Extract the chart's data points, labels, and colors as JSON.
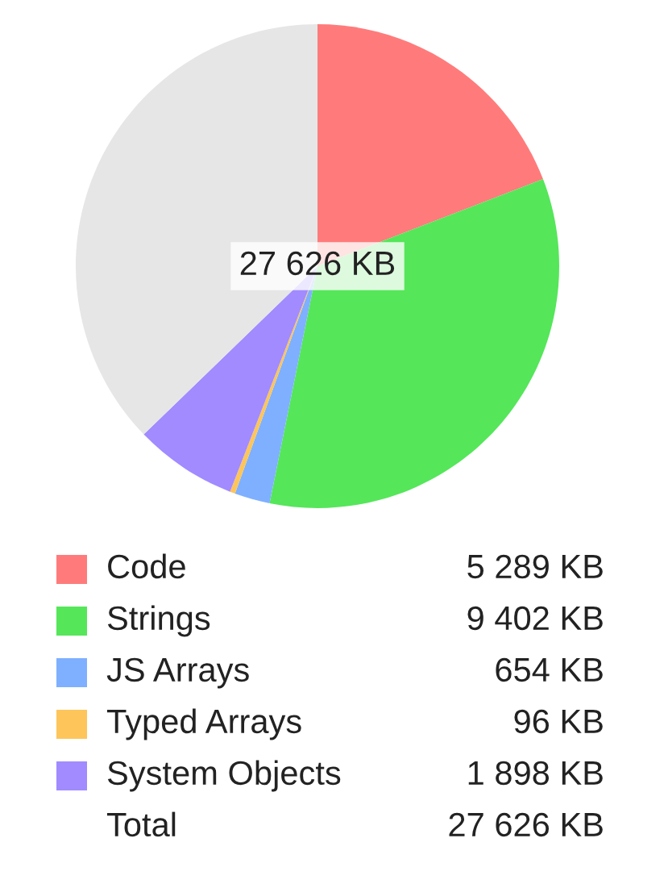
{
  "chart_data": {
    "type": "pie",
    "categories": [
      "Code",
      "Strings",
      "JS Arrays",
      "Typed Arrays",
      "System Objects",
      null
    ],
    "values": [
      5289,
      9402,
      654,
      96,
      1898,
      10287
    ],
    "colors": [
      "#ff7b7b",
      "#55e65a",
      "#7fb0ff",
      "#fdc55a",
      "#a18bff",
      "#e6e6e6"
    ],
    "value_labels": [
      "5 289 KB",
      "9 402 KB",
      "654 KB",
      "96 KB",
      "1 898 KB",
      null
    ],
    "annotations": [
      "27 626 KB",
      "Total",
      "27 626 KB"
    ],
    "legend": "bottom"
  }
}
